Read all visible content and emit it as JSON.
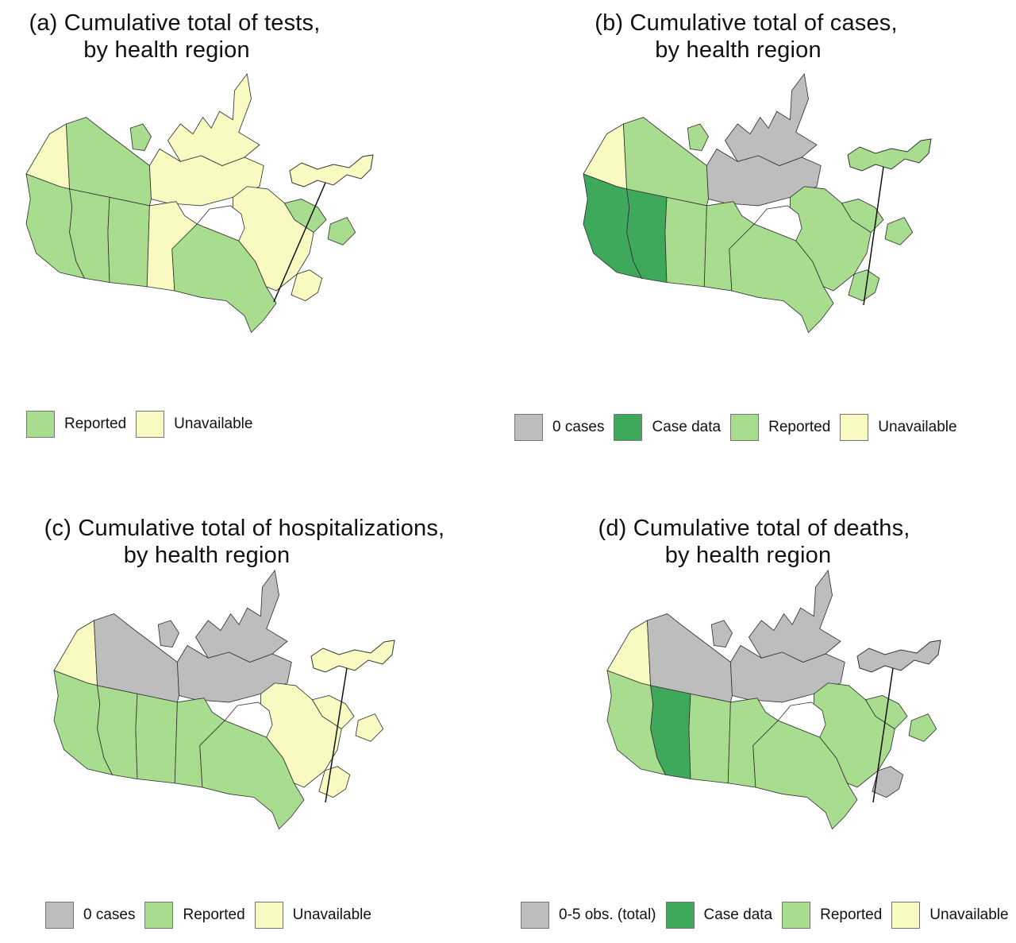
{
  "colors": {
    "gray": "#bdbdbd",
    "dark_green": "#3ea95a",
    "light_green": "#a8dc8f",
    "pale_yellow": "#f9f9c2",
    "border": "#333333"
  },
  "panels": [
    {
      "title_line1": "(a) Cumulative total of tests,",
      "title_line2": "by health region",
      "legend": [
        {
          "label": "Reported",
          "color_key": "light_green"
        },
        {
          "label": "Unavailable",
          "color_key": "pale_yellow"
        }
      ],
      "regions": {
        "yukon": "pale_yellow",
        "nwt": "light_green",
        "nunavut": "pale_yellow",
        "arctic": "pale_yellow",
        "arctic_west": "light_green",
        "bc": "light_green",
        "alberta": "light_green",
        "sask": "light_green",
        "manitoba": "pale_yellow",
        "ontario": "light_green",
        "quebec": "pale_yellow",
        "labrador": "light_green",
        "newfoundland": "light_green",
        "maritimes": "pale_yellow",
        "pei_inset": "pale_yellow"
      }
    },
    {
      "title_line1": "(b) Cumulative total of cases,",
      "title_line2": "by health region",
      "legend": [
        {
          "label": "0 cases",
          "color_key": "gray"
        },
        {
          "label": "Case data",
          "color_key": "dark_green"
        },
        {
          "label": "Reported",
          "color_key": "light_green"
        },
        {
          "label": "Unavailable",
          "color_key": "pale_yellow"
        }
      ],
      "regions": {
        "yukon": "pale_yellow",
        "nwt": "light_green",
        "nunavut": "gray",
        "arctic": "gray",
        "arctic_west": "light_green",
        "bc": "dark_green",
        "alberta": "dark_green",
        "sask": "light_green",
        "manitoba": "light_green",
        "ontario": "light_green",
        "quebec": "light_green",
        "labrador": "light_green",
        "newfoundland": "light_green",
        "maritimes": "light_green",
        "pei_inset": "light_green"
      }
    },
    {
      "title_line1": "(c) Cumulative total of hospitalizations,",
      "title_line2": "by health region",
      "legend": [
        {
          "label": "0 cases",
          "color_key": "gray"
        },
        {
          "label": "Reported",
          "color_key": "light_green"
        },
        {
          "label": "Unavailable",
          "color_key": "pale_yellow"
        }
      ],
      "regions": {
        "yukon": "pale_yellow",
        "nwt": "gray",
        "nunavut": "gray",
        "arctic": "gray",
        "arctic_west": "gray",
        "bc": "light_green",
        "alberta": "light_green",
        "sask": "light_green",
        "manitoba": "light_green",
        "ontario": "light_green",
        "quebec": "pale_yellow",
        "labrador": "pale_yellow",
        "newfoundland": "pale_yellow",
        "maritimes": "pale_yellow",
        "pei_inset": "pale_yellow"
      }
    },
    {
      "title_line1": "(d) Cumulative total of deaths,",
      "title_line2": "by health region",
      "legend": [
        {
          "label": "0-5 obs. (total)",
          "color_key": "gray"
        },
        {
          "label": "Case data",
          "color_key": "dark_green"
        },
        {
          "label": "Reported",
          "color_key": "light_green"
        },
        {
          "label": "Unavailable",
          "color_key": "pale_yellow"
        }
      ],
      "regions": {
        "yukon": "pale_yellow",
        "nwt": "gray",
        "nunavut": "gray",
        "arctic": "gray",
        "arctic_west": "gray",
        "bc": "light_green",
        "alberta": "dark_green",
        "sask": "light_green",
        "manitoba": "light_green",
        "ontario": "light_green",
        "quebec": "light_green",
        "labrador": "light_green",
        "newfoundland": "light_green",
        "maritimes": "gray",
        "pei_inset": "gray"
      }
    }
  ]
}
